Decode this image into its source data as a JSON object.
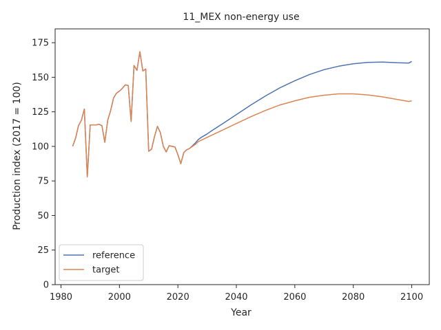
{
  "chart_data": {
    "type": "line",
    "title": "11_MEX non-energy use",
    "xlabel": "Year",
    "ylabel": "Production index (2017 = 100)",
    "xlim": [
      1978,
      2106
    ],
    "ylim": [
      0,
      185
    ],
    "xticks": [
      1980,
      2000,
      2020,
      2040,
      2060,
      2080,
      2100
    ],
    "yticks": [
      0,
      25,
      50,
      75,
      100,
      125,
      150,
      175
    ],
    "grid": false,
    "legend_position": "lower-left",
    "series": [
      {
        "name": "reference",
        "color": "#4c72b0",
        "x": [
          1984,
          1985,
          1986,
          1987,
          1988,
          1989,
          1990,
          1991,
          1992,
          1993,
          1994,
          1995,
          1996,
          1997,
          1998,
          1999,
          2000,
          2001,
          2002,
          2003,
          2004,
          2005,
          2006,
          2007,
          2008,
          2009,
          2010,
          2011,
          2012,
          2013,
          2014,
          2015,
          2016,
          2017,
          2018,
          2019,
          2020,
          2021,
          2022,
          2023,
          2024,
          2025,
          2026,
          2027,
          2028,
          2030,
          2031,
          2035,
          2040,
          2045,
          2050,
          2055,
          2060,
          2065,
          2070,
          2075,
          2080,
          2085,
          2090,
          2095,
          2099,
          2100
        ],
        "y": [
          100,
          106,
          115,
          119,
          127,
          78,
          115.5,
          115.5,
          115.5,
          116,
          115,
          103,
          119,
          126,
          135,
          138.5,
          140,
          142,
          144.5,
          144,
          118,
          158.5,
          155,
          168.5,
          154.5,
          156,
          96.5,
          98,
          107,
          114.5,
          110,
          100,
          96,
          100.5,
          100,
          99.5,
          94,
          87.5,
          95.5,
          97.5,
          98.5,
          100.5,
          102.5,
          105,
          106.5,
          109,
          110.5,
          116,
          123,
          130,
          136.5,
          142.5,
          147.5,
          152,
          155.5,
          158,
          159.8,
          160.8,
          161,
          160.5,
          160.3,
          161.5
        ]
      },
      {
        "name": "target",
        "color": "#dd8452",
        "x": [
          1984,
          1985,
          1986,
          1987,
          1988,
          1989,
          1990,
          1991,
          1992,
          1993,
          1994,
          1995,
          1996,
          1997,
          1998,
          1999,
          2000,
          2001,
          2002,
          2003,
          2004,
          2005,
          2006,
          2007,
          2008,
          2009,
          2010,
          2011,
          2012,
          2013,
          2014,
          2015,
          2016,
          2017,
          2018,
          2019,
          2020,
          2021,
          2022,
          2023,
          2024,
          2025,
          2026,
          2027,
          2028,
          2030,
          2031,
          2035,
          2040,
          2045,
          2050,
          2055,
          2060,
          2065,
          2070,
          2075,
          2080,
          2085,
          2090,
          2095,
          2099,
          2100
        ],
        "y": [
          100,
          106,
          115,
          119,
          127,
          78,
          115.5,
          115.5,
          115.5,
          116,
          115,
          103,
          119,
          126,
          135,
          138.5,
          140,
          142,
          144.5,
          144,
          118,
          158.5,
          155,
          168.5,
          154.5,
          156,
          96.5,
          98,
          107,
          114.5,
          110,
          100,
          96,
          100.5,
          100,
          99.5,
          94,
          87.5,
          95.5,
          97.5,
          98.5,
          100,
          101.5,
          103.5,
          104.5,
          106.5,
          107.5,
          111.5,
          116.5,
          121.5,
          126,
          130,
          133,
          135.5,
          137,
          138,
          138,
          137.2,
          135.8,
          134,
          132.5,
          133
        ]
      }
    ]
  }
}
